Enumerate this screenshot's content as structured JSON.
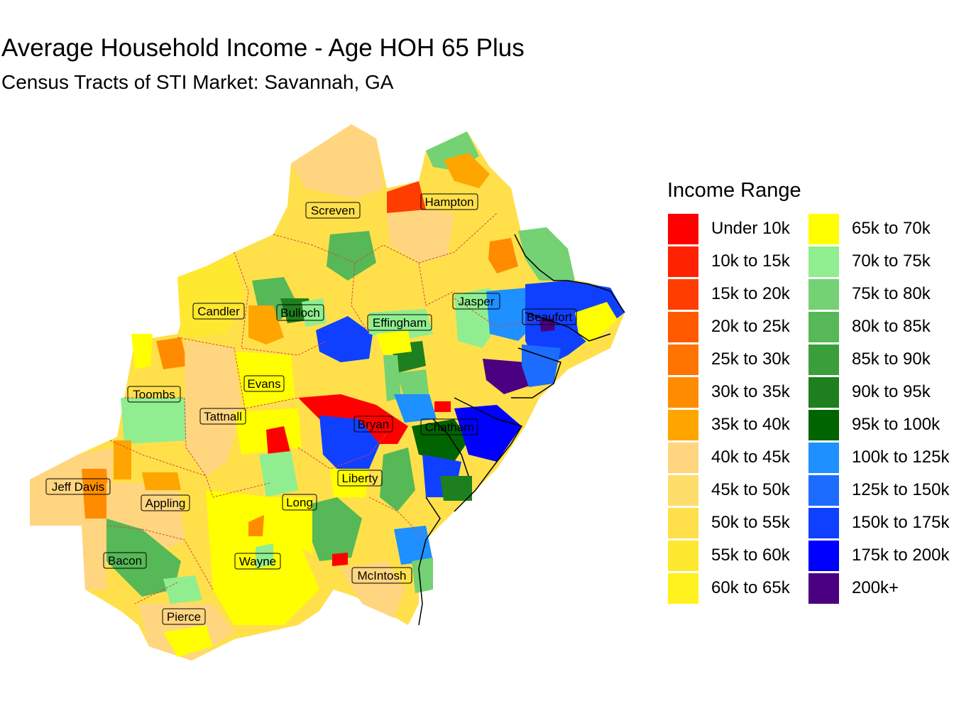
{
  "title": "Average Household Income - Age HOH 65 Plus",
  "subtitle": "Census Tracts of STI Market: Savannah, GA",
  "legend": {
    "title": "Income Range",
    "items": [
      {
        "label": "Under 10k",
        "color": "#ff0000"
      },
      {
        "label": "10k to 15k",
        "color": "#ff2200"
      },
      {
        "label": "15k to 20k",
        "color": "#ff3d00"
      },
      {
        "label": "20k to 25k",
        "color": "#ff5a00"
      },
      {
        "label": "25k to 30k",
        "color": "#ff7400"
      },
      {
        "label": "30k to 35k",
        "color": "#ff8c00"
      },
      {
        "label": "35k to 40k",
        "color": "#ffa500"
      },
      {
        "label": "40k to 45k",
        "color": "#ffd580"
      },
      {
        "label": "45k to 50k",
        "color": "#ffdd6a"
      },
      {
        "label": "50k to 55k",
        "color": "#ffe04b"
      },
      {
        "label": "55k to 60k",
        "color": "#ffe830"
      },
      {
        "label": "60k to 65k",
        "color": "#fff21e"
      },
      {
        "label": "65k to 70k",
        "color": "#ffff00"
      },
      {
        "label": "70k to 75k",
        "color": "#90ee90"
      },
      {
        "label": "75k to 80k",
        "color": "#74d174"
      },
      {
        "label": "80k to 85k",
        "color": "#56b856"
      },
      {
        "label": "85k to 90k",
        "color": "#3a9e3a"
      },
      {
        "label": "90k to 95k",
        "color": "#1e7f1e"
      },
      {
        "label": "95k to 100k",
        "color": "#006400"
      },
      {
        "label": "100k to 125k",
        "color": "#1e90ff"
      },
      {
        "label": "125k to 150k",
        "color": "#1c6cff"
      },
      {
        "label": "150k to 175k",
        "color": "#1040ff"
      },
      {
        "label": "175k to 200k",
        "color": "#0000ff"
      },
      {
        "label": "200k+",
        "color": "#4b0082"
      }
    ]
  },
  "counties": [
    {
      "name": "Screven"
    },
    {
      "name": "Hampton"
    },
    {
      "name": "Candler"
    },
    {
      "name": "Bulloch"
    },
    {
      "name": "Jasper"
    },
    {
      "name": "Beaufort"
    },
    {
      "name": "Effingham"
    },
    {
      "name": "Evans"
    },
    {
      "name": "Toombs"
    },
    {
      "name": "Tattnall"
    },
    {
      "name": "Bryan"
    },
    {
      "name": "Chatham"
    },
    {
      "name": "Jeff Davis"
    },
    {
      "name": "Liberty"
    },
    {
      "name": "Appling"
    },
    {
      "name": "Long"
    },
    {
      "name": "Bacon"
    },
    {
      "name": "Wayne"
    },
    {
      "name": "McIntosh"
    },
    {
      "name": "Pierce"
    }
  ]
}
